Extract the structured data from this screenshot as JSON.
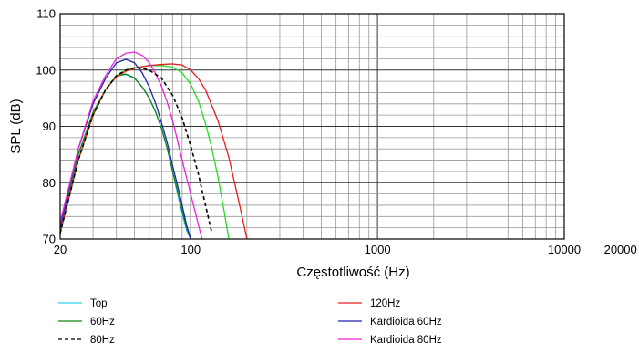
{
  "chart_data": {
    "type": "line",
    "xlabel": "Częstotliwość (Hz)",
    "ylabel": "SPL (dB)",
    "x_scale": "log",
    "xlim": [
      20,
      20000
    ],
    "ylim": [
      70,
      110
    ],
    "x_ticks": [
      20,
      100,
      1000,
      10000,
      20000
    ],
    "x_tick_labels": [
      "20",
      "100",
      "1000",
      "10000",
      "20000"
    ],
    "y_ticks": [
      70,
      80,
      90,
      100,
      110
    ],
    "y_tick_labels": [
      "70",
      "80",
      "90",
      "100",
      "110"
    ],
    "grid": true,
    "legend_position": "bottom",
    "series": [
      {
        "name": "Top",
        "color": "#33ccee",
        "dash": "solid",
        "x": [
          20,
          25,
          30,
          35,
          40,
          45,
          50,
          55,
          60,
          65,
          70,
          75,
          80,
          85,
          90,
          95,
          100
        ],
        "y": [
          72,
          85,
          92.5,
          96.5,
          99,
          99.2,
          98.5,
          97,
          95,
          92.5,
          89.5,
          86,
          82,
          78,
          74.5,
          71.5,
          70
        ]
      },
      {
        "name": "60Hz",
        "color": "#118811",
        "dash": "solid",
        "x": [
          20,
          25,
          30,
          35,
          40,
          45,
          50,
          55,
          60,
          65,
          70,
          75,
          80,
          85,
          90,
          95,
          100
        ],
        "y": [
          71,
          85,
          92.5,
          96.5,
          99,
          99.3,
          98.6,
          97,
          95,
          92.5,
          89.5,
          86,
          82,
          78.5,
          75,
          72,
          70
        ]
      },
      {
        "name": "80Hz",
        "color": "#000000",
        "dash": "dashed",
        "x": [
          20,
          25,
          30,
          35,
          40,
          45,
          50,
          55,
          60,
          70,
          80,
          90,
          100,
          110,
          120,
          130
        ],
        "y": [
          71,
          84,
          92,
          96.5,
          99,
          100,
          100.4,
          100.3,
          100,
          98.5,
          95.5,
          91.5,
          86.5,
          81.5,
          76,
          71
        ]
      },
      {
        "name": "120Hz",
        "color": "#e02020",
        "dash": "solid",
        "x": [
          20,
          25,
          30,
          35,
          40,
          45,
          50,
          55,
          60,
          70,
          80,
          90,
          100,
          110,
          120,
          140,
          160,
          180,
          200
        ],
        "y": [
          71,
          84,
          92,
          96.5,
          98.8,
          99.8,
          100.3,
          100.6,
          100.8,
          101,
          101.1,
          100.9,
          100,
          98.5,
          96.5,
          91,
          84.5,
          77,
          70
        ]
      },
      {
        "name": "Kardioida 60Hz",
        "color": "#2222aa",
        "dash": "solid",
        "x": [
          20,
          25,
          30,
          35,
          40,
          45,
          50,
          55,
          60,
          65,
          70,
          75,
          80,
          85,
          90,
          95,
          100
        ],
        "y": [
          72,
          86,
          94,
          98.5,
          101.3,
          101.9,
          101.3,
          99.5,
          97,
          94,
          90.5,
          87,
          83,
          79.5,
          76,
          72.5,
          70
        ]
      },
      {
        "name": "Kardioida 80Hz",
        "color": "#ee22dd",
        "dash": "solid",
        "x": [
          20,
          25,
          30,
          35,
          40,
          45,
          50,
          55,
          60,
          65,
          70,
          75,
          80,
          85,
          90,
          100,
          110,
          115
        ],
        "y": [
          73,
          86,
          94.5,
          99,
          102,
          103,
          103.2,
          102.6,
          101.3,
          99.3,
          97,
          94.2,
          91,
          87.5,
          84,
          78,
          72.5,
          70
        ]
      },
      {
        "name": "",
        "color": "#22dd22",
        "dash": "solid",
        "x": [
          20,
          25,
          30,
          35,
          40,
          45,
          50,
          60,
          70,
          80,
          90,
          100,
          110,
          120,
          130,
          140,
          150,
          160
        ],
        "y": [
          71,
          84,
          92,
          96.5,
          99,
          100,
          100.4,
          100.8,
          100.8,
          100.5,
          99.5,
          97.5,
          94.5,
          90.5,
          86,
          81,
          75.5,
          70
        ]
      }
    ]
  }
}
